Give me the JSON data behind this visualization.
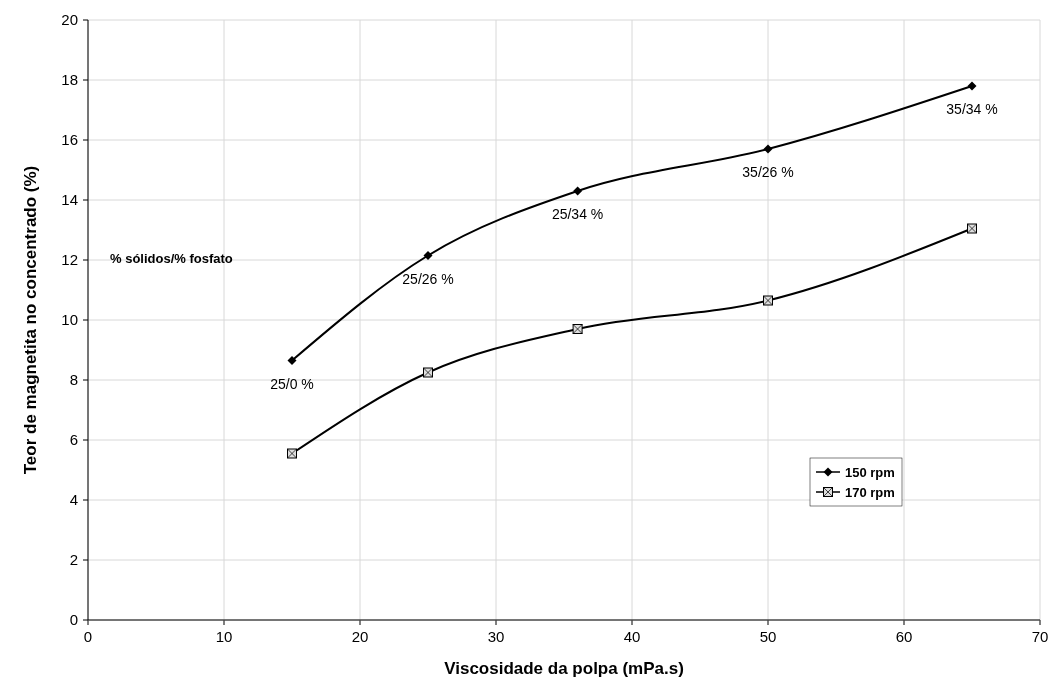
{
  "chart_data": {
    "type": "line",
    "xlabel": "Viscosidade da polpa (mPa.s)",
    "ylabel": "Teor de magnetita no concentrado (%)",
    "x": [
      15,
      25,
      36,
      50,
      65
    ],
    "series": [
      {
        "name": "150 rpm",
        "color": "#000000",
        "marker": "diamond",
        "values": [
          8.65,
          12.15,
          14.3,
          15.7,
          17.8
        ]
      },
      {
        "name": "170 rpm",
        "color": "#000000",
        "marker": "square",
        "values": [
          5.55,
          8.25,
          9.7,
          10.65,
          13.05
        ]
      }
    ],
    "xlim": [
      0,
      70
    ],
    "xticks": [
      0,
      10,
      20,
      30,
      40,
      50,
      60,
      70
    ],
    "ylim": [
      0,
      20
    ],
    "yticks": [
      0,
      2,
      4,
      6,
      8,
      10,
      12,
      14,
      16,
      18,
      20
    ],
    "grid": true,
    "legend": "right",
    "line_style": "solid",
    "annotations": [
      "% sólidos/% fosfato",
      {
        "text": "25/0 %",
        "x": 15,
        "y": 8.65
      },
      {
        "text": "25/26 %",
        "x": 25,
        "y": 12.15
      },
      {
        "text": "25/34 %",
        "x": 36,
        "y": 14.3
      },
      {
        "text": "35/26 %",
        "x": 50,
        "y": 15.7
      },
      {
        "text": "35/34 %",
        "x": 65,
        "y": 17.8
      }
    ]
  }
}
